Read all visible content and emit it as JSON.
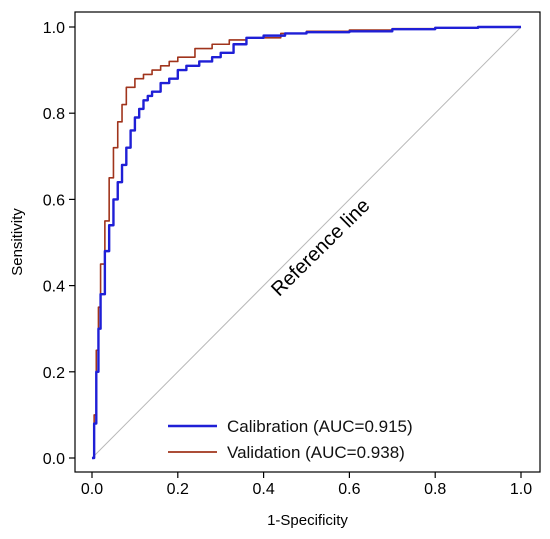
{
  "chart_data": {
    "type": "line",
    "title": "",
    "xlabel": "1-Specificity",
    "ylabel": "Sensitivity",
    "xlim": [
      0,
      1
    ],
    "ylim": [
      0,
      1
    ],
    "xticks": [
      0.0,
      0.2,
      0.4,
      0.6,
      0.8,
      1.0
    ],
    "xtick_labels": [
      "0.0",
      "0.2",
      "0.4",
      "0.6",
      "0.8",
      "1.0"
    ],
    "yticks": [
      0.0,
      0.2,
      0.4,
      0.6,
      0.8,
      1.0
    ],
    "ytick_labels": [
      "0.0",
      "0.2",
      "0.4",
      "0.6",
      "0.8",
      "1.0"
    ],
    "grid": false,
    "legend_position": "bottom-right",
    "annotation": "Reference line",
    "reference_line": {
      "x": [
        0,
        1
      ],
      "y": [
        0,
        1
      ],
      "color": "#b8b8b8"
    },
    "series": [
      {
        "name": "Calibration (AUC=0.915)",
        "color": "#1f1fd6",
        "x": [
          0,
          0.005,
          0.01,
          0.015,
          0.02,
          0.03,
          0.04,
          0.05,
          0.06,
          0.07,
          0.08,
          0.09,
          0.1,
          0.11,
          0.12,
          0.13,
          0.14,
          0.16,
          0.18,
          0.2,
          0.22,
          0.25,
          0.28,
          0.3,
          0.33,
          0.36,
          0.4,
          0.45,
          0.5,
          0.6,
          0.7,
          0.8,
          0.9,
          1.0
        ],
        "y": [
          0,
          0.08,
          0.2,
          0.3,
          0.38,
          0.48,
          0.54,
          0.6,
          0.64,
          0.68,
          0.72,
          0.76,
          0.79,
          0.81,
          0.83,
          0.84,
          0.85,
          0.87,
          0.88,
          0.9,
          0.91,
          0.92,
          0.93,
          0.94,
          0.96,
          0.975,
          0.98,
          0.985,
          0.988,
          0.99,
          0.995,
          0.998,
          1.0,
          1.0
        ]
      },
      {
        "name": "Validation (AUC=0.938)",
        "color": "#a0341c",
        "x": [
          0,
          0.005,
          0.01,
          0.015,
          0.02,
          0.03,
          0.04,
          0.05,
          0.06,
          0.07,
          0.08,
          0.1,
          0.12,
          0.14,
          0.16,
          0.18,
          0.2,
          0.24,
          0.28,
          0.32,
          0.36,
          0.44,
          0.5,
          0.6,
          0.7,
          0.8,
          0.9,
          1.0
        ],
        "y": [
          0,
          0.1,
          0.25,
          0.35,
          0.45,
          0.55,
          0.65,
          0.72,
          0.78,
          0.82,
          0.86,
          0.88,
          0.89,
          0.9,
          0.91,
          0.92,
          0.93,
          0.95,
          0.96,
          0.97,
          0.975,
          0.985,
          0.99,
          0.993,
          0.996,
          0.998,
          1.0,
          1.0
        ]
      }
    ]
  }
}
